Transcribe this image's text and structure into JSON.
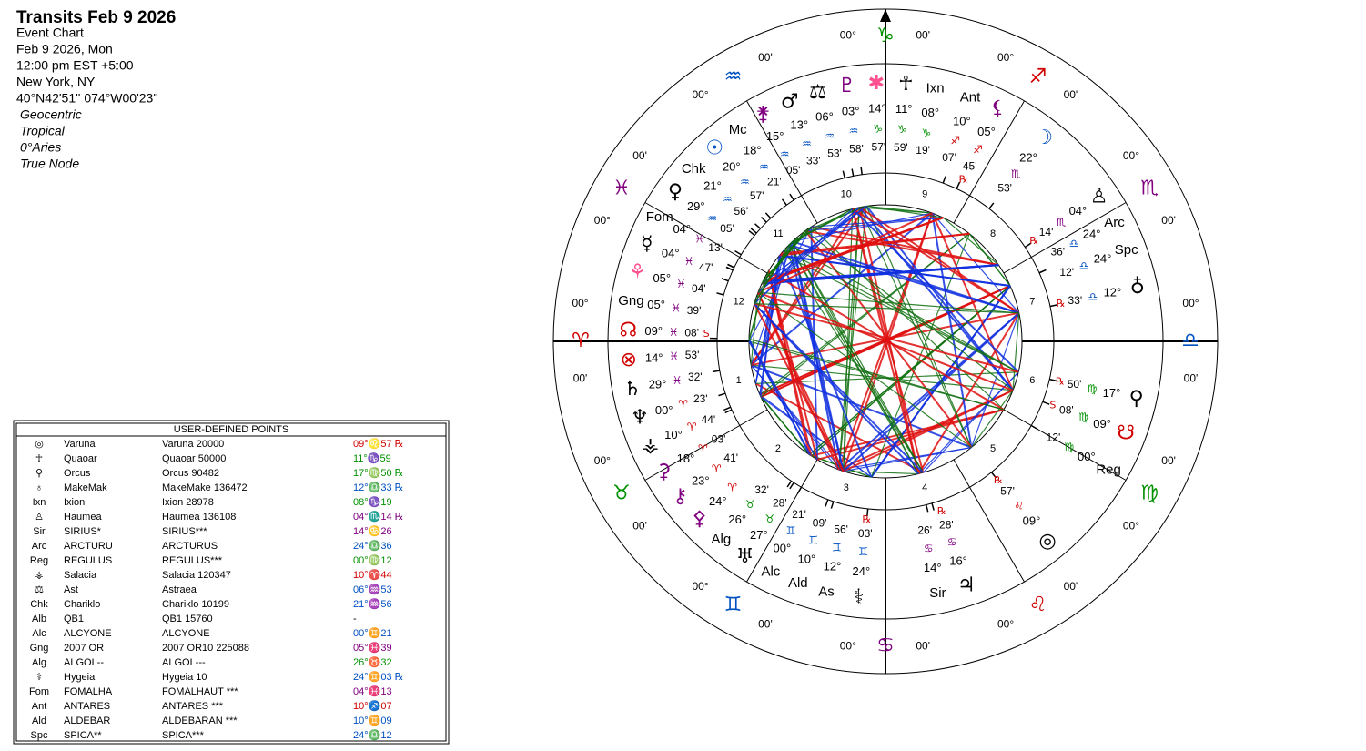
{
  "header": {
    "title": "Transits Feb 9 2026",
    "lines": [
      "Event Chart",
      "Feb 9 2026, Mon",
      "12:00 pm  EST +5:00",
      "New York, NY",
      "40°N42'51'' 074°W00'23''"
    ],
    "settings": [
      "Geocentric",
      "Tropical",
      "0°Aries",
      "True Node"
    ]
  },
  "table": {
    "title": "USER-DEFINED POINTS",
    "rows": [
      {
        "icon": "◎",
        "abbr": "Varuna",
        "name": "Varuna 20000",
        "pos": "09°♌57 ℞",
        "color": "#d00000"
      },
      {
        "icon": "☥",
        "abbr": "Quaoar",
        "name": "Quaoar 50000",
        "pos": "11°♑59",
        "color": "#009000"
      },
      {
        "icon": "⚲",
        "abbr": "Orcus",
        "name": "Orcus 90482",
        "pos": "17°♍50 ℞",
        "color": "#009000"
      },
      {
        "icon": "♁",
        "abbr": "MakeMak",
        "name": "MakeMake 136472",
        "pos": "12°♎33 ℞",
        "color": "#0050c0"
      },
      {
        "icon": "Ixn",
        "abbr": "Ixion",
        "name": "Ixion 28978",
        "pos": "08°♑19",
        "color": "#009000"
      },
      {
        "icon": "♙",
        "abbr": "Haumea",
        "name": "Haumea 136108",
        "pos": "04°♏14 ℞",
        "color": "#800080"
      },
      {
        "icon": "Sir",
        "abbr": "SIRIUS*",
        "name": "SIRIUS***",
        "pos": "14°♋26",
        "color": "#800080"
      },
      {
        "icon": "Arc",
        "abbr": "ARCTURU",
        "name": "ARCTURUS",
        "pos": "24°♎36",
        "color": "#0050c0"
      },
      {
        "icon": "Reg",
        "abbr": "REGULUS",
        "name": "REGULUS***",
        "pos": "00°♍12",
        "color": "#009000"
      },
      {
        "icon": "⚶",
        "abbr": "Salacia",
        "name": "Salacia 120347",
        "pos": "10°♈44",
        "color": "#d00000"
      },
      {
        "icon": "⚖",
        "abbr": "Ast",
        "name": "Astraea",
        "pos": "06°♒53",
        "color": "#0050c0"
      },
      {
        "icon": "Chk",
        "abbr": "Chariklo",
        "name": "Chariklo 10199",
        "pos": "21°♒56",
        "color": "#0050c0"
      },
      {
        "icon": "Alb",
        "abbr": "QB1",
        "name": "QB1 15760",
        "pos": "-",
        "color": "#000000"
      },
      {
        "icon": "Alc",
        "abbr": "ALCYONE",
        "name": "ALCYONE",
        "pos": "00°♊21",
        "color": "#0050c0"
      },
      {
        "icon": "Gng",
        "abbr": "2007 OR",
        "name": "2007 OR10 225088",
        "pos": "05°♓39",
        "color": "#800080"
      },
      {
        "icon": "Alg",
        "abbr": "ALGOL--",
        "name": "ALGOL---",
        "pos": "26°♉32",
        "color": "#009000"
      },
      {
        "icon": "⚕",
        "abbr": "Hygeia",
        "name": "Hygeia 10",
        "pos": "24°♊03 ℞",
        "color": "#0050c0"
      },
      {
        "icon": "Fom",
        "abbr": "FOMALHA",
        "name": "FOMALHAUT ***",
        "pos": "04°♓13",
        "color": "#800080"
      },
      {
        "icon": "Ant",
        "abbr": "ANTARES",
        "name": "ANTARES ***",
        "pos": "10°♐07",
        "color": "#d00000"
      },
      {
        "icon": "Ald",
        "abbr": "ALDEBAR",
        "name": "ALDEBARAN ***",
        "pos": "10°♊09",
        "color": "#0050c0"
      },
      {
        "icon": "Spc",
        "abbr": "SPICA**",
        "name": "SPICA***",
        "pos": "24°♎12",
        "color": "#0050c0"
      }
    ]
  },
  "wheel": {
    "cusps": [
      {
        "deg": "00°",
        "sign": "♈",
        "min": "00'",
        "color": "#d00000"
      },
      {
        "deg": "00°",
        "sign": "♉",
        "min": "00'",
        "color": "#009000"
      },
      {
        "deg": "00°",
        "sign": "♊",
        "min": "00'",
        "color": "#0050c0"
      },
      {
        "deg": "00°",
        "sign": "♋",
        "min": "00'",
        "color": "#800080"
      },
      {
        "deg": "00°",
        "sign": "♌",
        "min": "00'",
        "color": "#d00000"
      },
      {
        "deg": "00°",
        "sign": "♍",
        "min": "00'",
        "color": "#009000"
      },
      {
        "deg": "00°",
        "sign": "♎",
        "min": "00'",
        "color": "#0050c0"
      },
      {
        "deg": "00°",
        "sign": "♏",
        "min": "00'",
        "color": "#800080"
      },
      {
        "deg": "00°",
        "sign": "♐",
        "min": "00'",
        "color": "#d00000"
      },
      {
        "deg": "00°",
        "sign": "♑",
        "min": "00'",
        "color": "#009000"
      },
      {
        "deg": "00°",
        "sign": "♒",
        "min": "00'",
        "color": "#0050c0"
      },
      {
        "deg": "00°",
        "sign": "♓",
        "min": "00'",
        "color": "#800080"
      }
    ],
    "houses": [
      1,
      2,
      3,
      4,
      5,
      6,
      7,
      8,
      9,
      10,
      11,
      12
    ],
    "planets": [
      {
        "glyph": "♆",
        "color": "#000000",
        "deg": {
          "value": 0,
          "label": "00°"
        },
        "sign": "♈",
        "min": "23'"
      },
      {
        "glyph": "⚶",
        "color": "#000000",
        "deg": {
          "value": 10,
          "label": "10°"
        },
        "sign": "♈",
        "min": "44'"
      },
      {
        "glyph": "⚳",
        "color": "#800080",
        "deg": {
          "value": 18,
          "label": "18°"
        },
        "sign": "♈",
        "min": "03'"
      },
      {
        "glyph": "⚷",
        "color": "#800080",
        "deg": {
          "value": 23,
          "label": "23°"
        },
        "sign": "♈",
        "min": "41'"
      },
      {
        "glyph": "⚴",
        "color": "#800080",
        "deg": {
          "value": 24,
          "label": "24°"
        },
        "sign": "♈"
      },
      {
        "glyph": "Alg",
        "color": "#000000",
        "deg": {
          "value": 26,
          "label": "26°"
        },
        "sign": "♉",
        "min": "32'"
      },
      {
        "glyph": "♅",
        "color": "#000000",
        "deg": {
          "value": 27,
          "label": "27°"
        },
        "sign": "♉",
        "min": "28'"
      },
      {
        "glyph": "Alc",
        "color": "#000000",
        "deg": {
          "value": 0,
          "label": "00°"
        },
        "sign": "♊",
        "min": "21'"
      },
      {
        "glyph": "Ald",
        "color": "#000000",
        "deg": {
          "value": 10,
          "label": "10°"
        },
        "sign": "♊",
        "min": "09'"
      },
      {
        "glyph": "As",
        "color": "#000000",
        "deg": {
          "value": 12,
          "label": "12°"
        },
        "sign": "♊",
        "min": "56'"
      },
      {
        "glyph": "⚕",
        "color": "#000000",
        "deg": {
          "value": 24,
          "label": "24°"
        },
        "sign": "♊",
        "min": "03'",
        "retro": "℞"
      },
      {
        "glyph": "Sir",
        "color": "#000000",
        "deg": {
          "value": 14,
          "label": "14°"
        },
        "sign": "♋",
        "min": "26'"
      },
      {
        "glyph": "♃",
        "color": "#000000",
        "deg": {
          "value": 16,
          "label": "16°"
        },
        "sign": "♋",
        "min": "28'",
        "retro": "℞"
      },
      {
        "glyph": "◎",
        "color": "#000000",
        "deg": {
          "value": 9,
          "label": "09°"
        },
        "sign": "♌",
        "min": "57'",
        "retro": "℞"
      },
      {
        "glyph": "Reg",
        "color": "#000000",
        "deg": {
          "value": 0,
          "label": "00°"
        },
        "sign": "♍",
        "min": "12'"
      },
      {
        "glyph": "☋",
        "color": "#d00000",
        "deg": {
          "value": 9,
          "label": "09°"
        },
        "sign": "♍",
        "min": "08'",
        "retro": "S"
      },
      {
        "glyph": "⚲",
        "color": "#000000",
        "deg": {
          "value": 17,
          "label": "17°"
        },
        "sign": "♍",
        "min": "50'",
        "retro": "℞"
      },
      {
        "glyph": "♁",
        "color": "#000000",
        "deg": {
          "value": 12,
          "label": "12°"
        },
        "sign": "♎",
        "min": "33'",
        "retro": "℞"
      },
      {
        "glyph": "Spc",
        "color": "#000000",
        "deg": {
          "value": 24,
          "label": "24°"
        },
        "sign": "♎",
        "min": "12'"
      },
      {
        "glyph": "Arc",
        "color": "#000000",
        "deg": {
          "value": 24,
          "label": "24°"
        },
        "sign": "♎",
        "min": "36'"
      },
      {
        "glyph": "♙",
        "color": "#000000",
        "deg": {
          "value": 4,
          "label": "04°"
        },
        "sign": "♏",
        "min": "14'",
        "retro": "℞"
      },
      {
        "glyph": "☽",
        "color": "#0050c0",
        "deg": {
          "value": 22,
          "label": "22°"
        },
        "sign": "♏",
        "min": "53'"
      },
      {
        "glyph": "⚸",
        "color": "#800080",
        "deg": {
          "value": 5,
          "label": "05°"
        },
        "sign": "♐",
        "min": "45'",
        "retro": "℞"
      },
      {
        "glyph": "Ant",
        "color": "#000000",
        "deg": {
          "value": 10,
          "label": "10°"
        },
        "sign": "♐",
        "min": "07'"
      },
      {
        "glyph": "Ixn",
        "color": "#000000",
        "deg": {
          "value": 8,
          "label": "08°"
        },
        "sign": "♑",
        "min": "19'"
      },
      {
        "glyph": "☥",
        "color": "#000000",
        "deg": {
          "value": 11,
          "label": "11°"
        },
        "sign": "♑",
        "min": "59'"
      },
      {
        "glyph": "✱",
        "color": "#ff5090",
        "deg": {
          "value": 14,
          "label": "14°"
        },
        "sign": "♑",
        "min": "57'"
      },
      {
        "glyph": "♇",
        "color": "#800080",
        "deg": {
          "value": 3,
          "label": "03°"
        },
        "sign": "♒",
        "min": "58'"
      },
      {
        "glyph": "⚖",
        "color": "#000000",
        "deg": {
          "value": 6,
          "label": "06°"
        },
        "sign": "♒",
        "min": "53'"
      },
      {
        "glyph": "♂",
        "color": "#000000",
        "deg": {
          "value": 13,
          "label": "13°"
        },
        "sign": "♒",
        "min": "33'"
      },
      {
        "glyph": "⚵",
        "color": "#800080",
        "deg": {
          "value": 15,
          "label": "15°"
        },
        "sign": "♒",
        "min": "05'"
      },
      {
        "glyph": "Mc",
        "color": "#000000",
        "deg": {
          "value": 18,
          "label": "18°"
        },
        "sign": "♒",
        "min": "21'"
      },
      {
        "glyph": "☉",
        "color": "#0050c0",
        "deg": {
          "value": 20,
          "label": "20°"
        },
        "sign": "♒",
        "min": "57'"
      },
      {
        "glyph": "Chk",
        "color": "#000000",
        "deg": {
          "value": 21,
          "label": "21°"
        },
        "sign": "♒",
        "min": "56'"
      },
      {
        "glyph": "♀",
        "color": "#000000",
        "deg": {
          "value": 29,
          "label": "29°"
        },
        "sign": "♒",
        "min": "05'"
      },
      {
        "glyph": "Fom",
        "color": "#000000",
        "deg": {
          "value": 4,
          "label": "04°"
        },
        "sign": "♓",
        "min": "13'"
      },
      {
        "glyph": "☿",
        "color": "#000000",
        "deg": {
          "value": 4,
          "label": "04°"
        },
        "sign": "♓",
        "min": "47'"
      },
      {
        "glyph": "⚘",
        "color": "#ff5090",
        "deg": {
          "value": 5,
          "label": "05°"
        },
        "sign": "♓",
        "min": "04'"
      },
      {
        "glyph": "Gng",
        "color": "#000000",
        "deg": {
          "value": 5,
          "label": "05°"
        },
        "sign": "♓",
        "min": "39'"
      },
      {
        "glyph": "☊",
        "color": "#d00000",
        "deg": {
          "value": 9,
          "label": "09°"
        },
        "sign": "♓",
        "min": "08'",
        "retro": "S"
      },
      {
        "glyph": "⊗",
        "color": "#d00000",
        "deg": {
          "value": 14,
          "label": "14°"
        },
        "sign": "♓",
        "min": "53'"
      },
      {
        "glyph": "♄",
        "color": "#000000",
        "deg": {
          "value": 29,
          "label": "29°"
        },
        "sign": "♓",
        "min": "32'"
      }
    ]
  }
}
